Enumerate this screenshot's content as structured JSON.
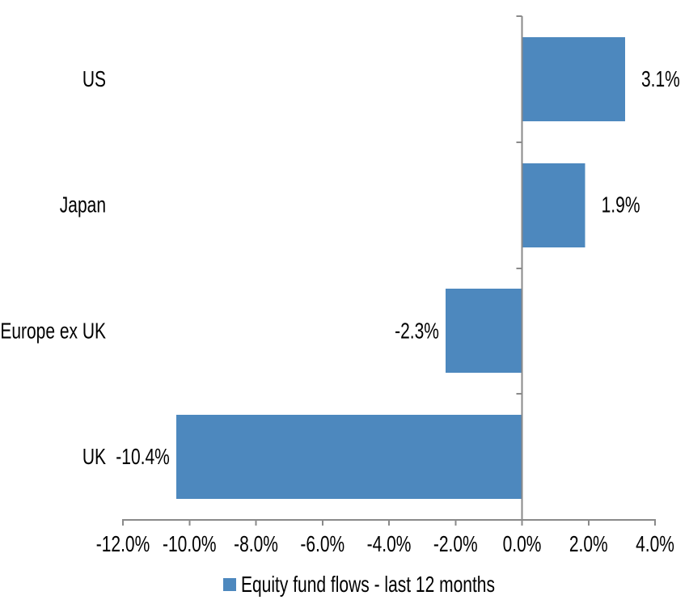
{
  "chart_data": {
    "type": "bar",
    "orientation": "horizontal",
    "title": "",
    "xlabel": "",
    "ylabel": "",
    "categories": [
      "US",
      "Japan",
      "Europe ex UK",
      "UK"
    ],
    "series": [
      {
        "name": "Equity fund flows - last 12 months",
        "values": [
          3.1,
          1.9,
          -2.3,
          -10.4
        ],
        "data_labels": [
          "3.1%",
          "1.9%",
          "-2.3%",
          "-10.4%"
        ],
        "color": "#4D88BE"
      }
    ],
    "xlim": [
      -12,
      4
    ],
    "x_tick_values": [
      -12,
      -10,
      -8,
      -6,
      -4,
      -2,
      0,
      2,
      4
    ],
    "x_tick_labels": [
      "-12.0%",
      "-10.0%",
      "-8.0%",
      "-6.0%",
      "-4.0%",
      "-2.0%",
      "0.0%",
      "2.0%",
      "4.0%"
    ],
    "grid": false,
    "legend_position": "bottom",
    "colors": {
      "bar": "#4D88BE",
      "axis": "#8A8A8A",
      "text": "#000000",
      "background": "#FFFFFF"
    }
  }
}
